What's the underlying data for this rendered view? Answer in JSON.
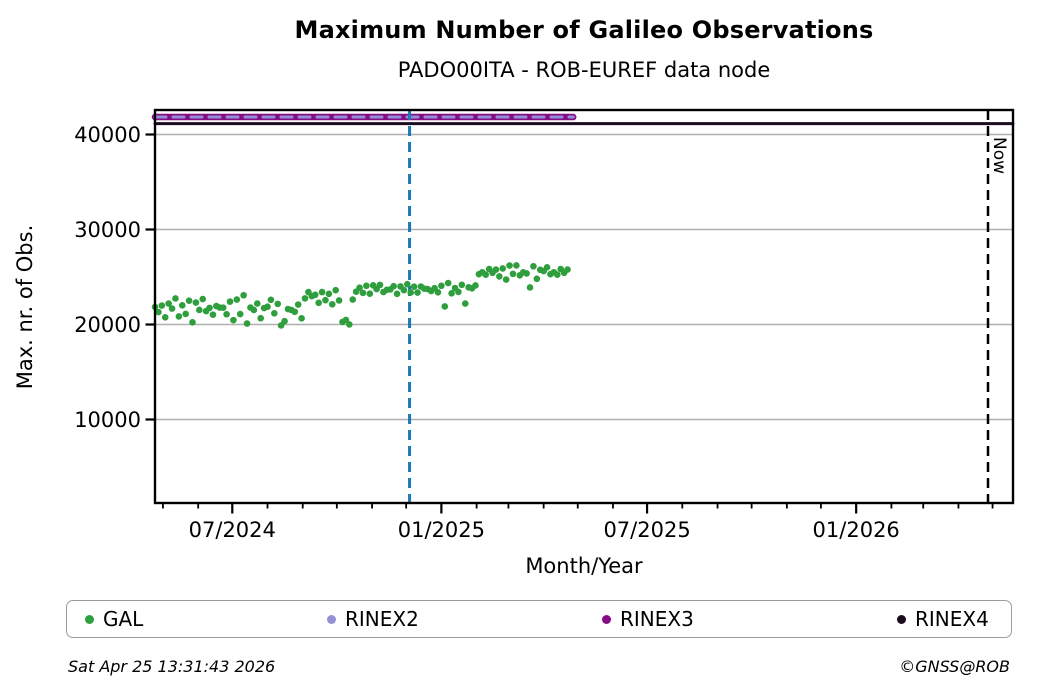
{
  "header": {
    "title": "Maximum Number of Galileo Observations",
    "subtitle": "PADO00ITA - ROB-EUREF data node"
  },
  "chart_data": {
    "type": "scatter",
    "title": "Maximum Number of Galileo Observations",
    "subtitle": "PADO00ITA - ROB-EUREF data node",
    "xlabel": "Month/Year",
    "ylabel": "Max. nr. of Obs.",
    "grid": "horizontal-major-only",
    "x_origin_date": "2024-04-24",
    "xlim_days": [
      0,
      755
    ],
    "xlim_dates": [
      "2024-04-24",
      "2026-05-19"
    ],
    "ylim": [
      1200,
      42600
    ],
    "y_ticks": [
      {
        "value": 10000,
        "label": "10000"
      },
      {
        "value": 20000,
        "label": "20000"
      },
      {
        "value": 30000,
        "label": "30000"
      },
      {
        "value": 40000,
        "label": "40000"
      }
    ],
    "x_major_ticks": [
      {
        "day": 68,
        "label": "07/2024"
      },
      {
        "day": 252,
        "label": "01/2025"
      },
      {
        "day": 433,
        "label": "07/2025"
      },
      {
        "day": 617,
        "label": "01/2026"
      }
    ],
    "x_minor_tick_days": [
      7,
      38,
      99,
      130,
      160,
      191,
      221,
      283,
      311,
      342,
      372,
      403,
      464,
      495,
      525,
      556,
      586,
      648,
      676,
      707,
      737
    ],
    "series": [
      {
        "name": "GAL",
        "type": "scatter",
        "color": "#2f9e3d",
        "marker_radius": 3.3,
        "points": [
          [
            0,
            21850
          ],
          [
            3,
            21310
          ],
          [
            6,
            21990
          ],
          [
            9,
            20760
          ],
          [
            12,
            22200
          ],
          [
            15,
            21680
          ],
          [
            18,
            22740
          ],
          [
            21,
            20850
          ],
          [
            24,
            22020
          ],
          [
            27,
            21110
          ],
          [
            30,
            22510
          ],
          [
            33,
            20230
          ],
          [
            36,
            22310
          ],
          [
            39,
            21530
          ],
          [
            42,
            22680
          ],
          [
            45,
            21410
          ],
          [
            48,
            21750
          ],
          [
            51,
            21030
          ],
          [
            54,
            21940
          ],
          [
            57,
            21780
          ],
          [
            60,
            21770
          ],
          [
            63,
            21080
          ],
          [
            66,
            22410
          ],
          [
            69,
            20460
          ],
          [
            72,
            22630
          ],
          [
            75,
            21100
          ],
          [
            78,
            23080
          ],
          [
            81,
            20100
          ],
          [
            84,
            21790
          ],
          [
            87,
            21530
          ],
          [
            90,
            22210
          ],
          [
            93,
            20660
          ],
          [
            96,
            21730
          ],
          [
            99,
            21870
          ],
          [
            102,
            22600
          ],
          [
            105,
            21180
          ],
          [
            108,
            22170
          ],
          [
            111,
            19900
          ],
          [
            114,
            20350
          ],
          [
            117,
            21630
          ],
          [
            120,
            21530
          ],
          [
            123,
            21340
          ],
          [
            126,
            22100
          ],
          [
            129,
            20650
          ],
          [
            132,
            22750
          ],
          [
            135,
            23410
          ],
          [
            138,
            22980
          ],
          [
            141,
            23130
          ],
          [
            144,
            22280
          ],
          [
            147,
            23410
          ],
          [
            150,
            22560
          ],
          [
            153,
            23230
          ],
          [
            156,
            22130
          ],
          [
            159,
            23610
          ],
          [
            162,
            22530
          ],
          [
            165,
            20270
          ],
          [
            168,
            20480
          ],
          [
            171,
            20010
          ],
          [
            174,
            22630
          ],
          [
            177,
            23450
          ],
          [
            180,
            23870
          ],
          [
            183,
            23330
          ],
          [
            186,
            24080
          ],
          [
            189,
            23240
          ],
          [
            192,
            24120
          ],
          [
            195,
            23730
          ],
          [
            198,
            24170
          ],
          [
            201,
            23420
          ],
          [
            204,
            23650
          ],
          [
            207,
            23690
          ],
          [
            210,
            24030
          ],
          [
            213,
            23230
          ],
          [
            216,
            24010
          ],
          [
            219,
            23620
          ],
          [
            222,
            24240
          ],
          [
            225,
            23370
          ],
          [
            228,
            23980
          ],
          [
            231,
            23360
          ],
          [
            234,
            24000
          ],
          [
            237,
            23770
          ],
          [
            240,
            23730
          ],
          [
            243,
            23520
          ],
          [
            246,
            23820
          ],
          [
            249,
            23390
          ],
          [
            252,
            24080
          ],
          [
            255,
            21900
          ],
          [
            258,
            24360
          ],
          [
            261,
            23280
          ],
          [
            264,
            23840
          ],
          [
            267,
            23430
          ],
          [
            270,
            24180
          ],
          [
            273,
            22200
          ],
          [
            276,
            23910
          ],
          [
            279,
            23810
          ],
          [
            282,
            24110
          ],
          [
            285,
            25300
          ],
          [
            288,
            25500
          ],
          [
            291,
            25240
          ],
          [
            294,
            25840
          ],
          [
            297,
            25440
          ],
          [
            300,
            25780
          ],
          [
            303,
            25060
          ],
          [
            306,
            25900
          ],
          [
            309,
            24730
          ],
          [
            312,
            26200
          ],
          [
            315,
            25330
          ],
          [
            318,
            26220
          ],
          [
            321,
            25180
          ],
          [
            324,
            25490
          ],
          [
            327,
            25380
          ],
          [
            330,
            23900
          ],
          [
            333,
            26130
          ],
          [
            336,
            24810
          ],
          [
            339,
            25760
          ],
          [
            342,
            25630
          ],
          [
            345,
            26020
          ],
          [
            348,
            25300
          ],
          [
            351,
            25500
          ],
          [
            354,
            25240
          ],
          [
            357,
            25840
          ],
          [
            360,
            25440
          ],
          [
            363,
            25780
          ]
        ]
      },
      {
        "name": "RINEX2",
        "type": "hline",
        "color": "#9390d6",
        "value": 41840,
        "day_range": [
          0,
          368
        ],
        "dash": true,
        "thick": false
      },
      {
        "name": "RINEX3",
        "type": "hline",
        "color": "#850c85",
        "value": 41840,
        "day_range": [
          0,
          368
        ],
        "dash": false,
        "thick": true
      },
      {
        "name": "RINEX4",
        "type": "hline",
        "color": "#1c0a20",
        "value": 41150,
        "day_range": [
          0,
          755
        ],
        "dash": false,
        "thick": false
      }
    ],
    "annotations": [
      {
        "name": "event-line",
        "type": "vline",
        "day": 224,
        "color": "#1f77b4",
        "dash": true,
        "label": ""
      },
      {
        "name": "now-line",
        "type": "vline",
        "day": 733,
        "color": "#000000",
        "dash": true,
        "label": "Now"
      }
    ]
  },
  "legend": {
    "items": [
      {
        "label": "GAL",
        "color": "#2f9e3d"
      },
      {
        "label": "RINEX2",
        "color": "#9390d6"
      },
      {
        "label": "RINEX3",
        "color": "#850c85"
      },
      {
        "label": "RINEX4",
        "color": "#1c0a20"
      }
    ]
  },
  "footer": {
    "timestamp": "Sat Apr 25 13:31:43 2026",
    "credit": "©GNSS@ROB"
  }
}
